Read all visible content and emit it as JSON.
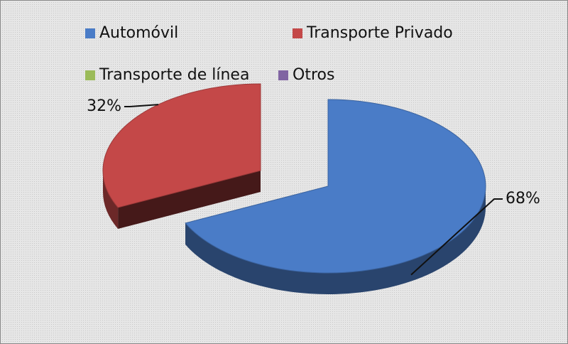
{
  "chart_data": {
    "type": "pie3d",
    "categories": [
      "Automóvil",
      "Transporte Privado",
      "Transporte de línea",
      "Otros"
    ],
    "values": [
      68,
      32,
      0,
      0
    ],
    "value_labels": [
      "68%",
      "32%",
      null,
      null
    ],
    "colors": [
      "#4a7cc7",
      "#c44848",
      "#9bbb59",
      "#8064a2"
    ],
    "legend": "top"
  }
}
